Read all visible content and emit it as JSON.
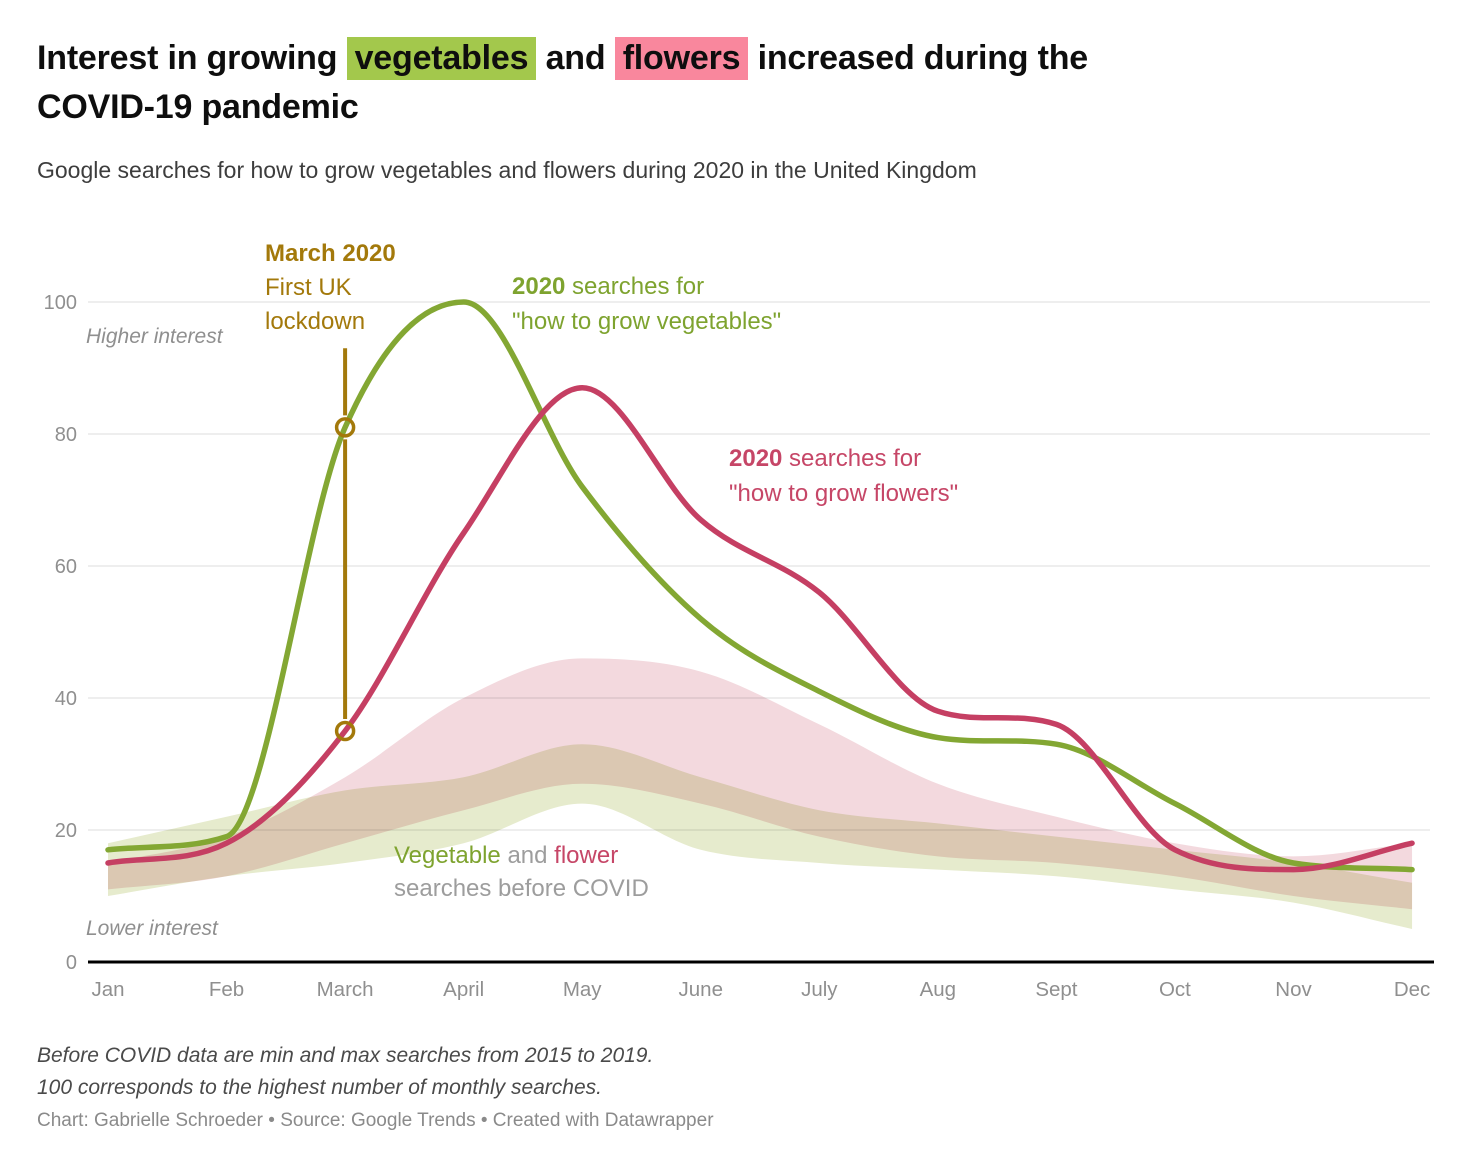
{
  "header": {
    "title": {
      "pre": "Interest in growing ",
      "highlight_vegetables": "vegetables",
      "mid": " and ",
      "highlight_flowers": "flowers",
      "post": " increased during the",
      "line2": "COVID-19 pandemic"
    },
    "subtitle": "Google searches for how to grow vegetables and flowers during 2020 in the United Kingdom"
  },
  "colors": {
    "green_line": "#83a733",
    "green_text": "#7ea32f",
    "pink_line": "#c53f63",
    "pink_text": "#c64667",
    "gold": "#a3790b",
    "highlight_green": "#a3c84c",
    "highlight_pink": "#f9879d",
    "veg_band": "#e6ebcd",
    "flower_band": "#f3d9de",
    "grid": "#e4e4e4",
    "axis": "#000000",
    "tick": "#8f8f8f"
  },
  "axis_notes": {
    "higher": "Higher interest",
    "lower": "Lower interest"
  },
  "annotations": {
    "lockdown": {
      "title": "March 2020",
      "line2": "First UK",
      "line3": "lockdown"
    },
    "vegetables": {
      "bold": "2020",
      "rest": " searches for",
      "line2": "\"how to grow vegetables\""
    },
    "flowers": {
      "bold": "2020",
      "rest": " searches for",
      "line2": "\"how to grow flowers\""
    },
    "band": {
      "veg": "Vegetable",
      "and": " and ",
      "flower": "flower",
      "line2": "searches before COVID"
    }
  },
  "footer": {
    "note_line1": "Before COVID data are min and max searches from 2015 to 2019.",
    "note_line2": "100 corresponds to the highest number of monthly searches.",
    "credit": "Chart: Gabrielle Schroeder • Source: Google Trends • Created with Datawrapper"
  },
  "chart_data": {
    "type": "line",
    "x_categories": [
      "Jan",
      "Feb",
      "March",
      "April",
      "May",
      "June",
      "July",
      "Aug",
      "Sept",
      "Oct",
      "Nov",
      "Dec"
    ],
    "y_ticks": [
      0,
      20,
      40,
      60,
      80,
      100
    ],
    "ylim": [
      0,
      100
    ],
    "grid": true,
    "series": [
      {
        "name": "2020 searches for \"how to grow vegetables\"",
        "color": "#83a733",
        "values": [
          17,
          19,
          81,
          100,
          72,
          52,
          41,
          34,
          33,
          24,
          15,
          14
        ]
      },
      {
        "name": "2020 searches for \"how to grow flowers\"",
        "color": "#c53f63",
        "values": [
          15,
          18,
          35,
          65,
          87,
          67,
          56,
          38,
          36,
          17,
          14,
          18
        ]
      }
    ],
    "bands": [
      {
        "name": "vegetable searches before COVID (min and max 2015-2019)",
        "color": "#e6ebcd",
        "min": [
          10,
          13,
          15,
          18,
          24,
          17,
          15,
          14,
          13,
          11,
          9,
          5
        ],
        "max": [
          18,
          22,
          26,
          28,
          33,
          28,
          23,
          21,
          19,
          17,
          15,
          12
        ]
      },
      {
        "name": "flower searches before COVID (min and max 2015-2019)",
        "color": "#f3d9de",
        "min": [
          11,
          13,
          18,
          23,
          27,
          24,
          19,
          16,
          15,
          13,
          10,
          8
        ],
        "max": [
          15,
          19,
          28,
          40,
          46,
          44,
          36,
          27,
          22,
          18,
          16,
          18
        ]
      }
    ],
    "annotation_line": {
      "month_index": 2,
      "from_value": 93,
      "to_value": 35
    },
    "annotation_markers": [
      {
        "month_index": 2,
        "series": "vegetables",
        "value": 81
      },
      {
        "month_index": 2,
        "series": "flowers",
        "value": 35
      }
    ]
  }
}
